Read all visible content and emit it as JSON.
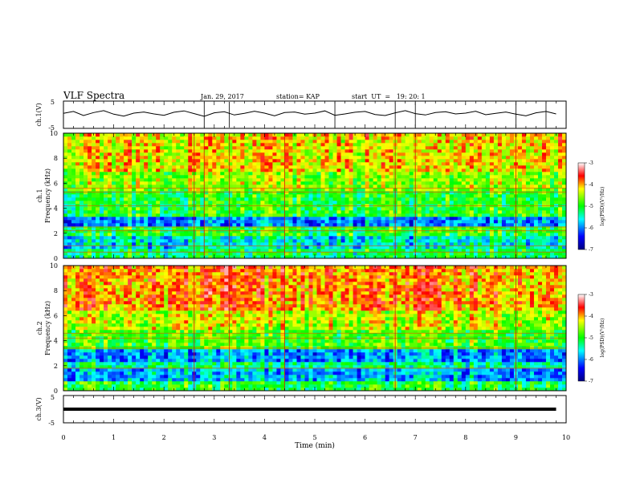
{
  "header": {
    "title": "VLF Spectra",
    "date": "Jan. 29, 2017",
    "station": "station= KAP",
    "start": "start  UT  =   19: 20: 1"
  },
  "chart_data": [
    {
      "type": "line",
      "ylabel": "ch.1(V)",
      "ylim": [
        -5,
        5
      ],
      "yticks": [
        "5",
        "-5"
      ],
      "xlim": [
        0,
        10
      ],
      "x": [
        0,
        0.2,
        0.4,
        0.6,
        0.8,
        1.0,
        1.2,
        1.4,
        1.6,
        1.8,
        2.0,
        2.2,
        2.4,
        2.6,
        2.8,
        3.0,
        3.2,
        3.4,
        3.6,
        3.8,
        4.0,
        4.2,
        4.4,
        4.6,
        4.8,
        5.0,
        5.2,
        5.4,
        5.6,
        5.8,
        6.0,
        6.2,
        6.4,
        6.6,
        6.8,
        7.0,
        7.2,
        7.4,
        7.6,
        7.8,
        8.0,
        8.2,
        8.4,
        8.6,
        8.8,
        9.0,
        9.2,
        9.4,
        9.6,
        9.8
      ],
      "y": [
        0.5,
        1.2,
        -0.3,
        0.8,
        1.5,
        0.2,
        -0.5,
        0.6,
        1.0,
        0.3,
        -0.2,
        0.9,
        1.4,
        0.4,
        -0.6,
        0.7,
        1.1,
        -0.1,
        0.5,
        1.3,
        0.6,
        -0.4,
        0.8,
        1.0,
        0.2,
        0.6,
        1.4,
        -0.2,
        0.3,
        0.9,
        1.2,
        0.1,
        -0.3,
        0.7,
        1.5,
        0.4,
        -0.1,
        0.8,
        1.1,
        0.3,
        0.6,
        1.3,
        0.0,
        0.5,
        1.0,
        0.2,
        -0.4,
        0.7,
        1.2,
        0.3
      ],
      "bursts": [
        2.8,
        3.3,
        5.4,
        6.6,
        7.0,
        9.0,
        9.6
      ]
    },
    {
      "type": "heatmap",
      "ylabel": "ch.1\nFrequency (kHz)",
      "ylim": [
        0,
        10
      ],
      "yticks": [
        "0",
        "2",
        "4",
        "6",
        "8",
        "10"
      ],
      "xlim": [
        0,
        10
      ],
      "colorbar": {
        "label": "log(PSD)(V²/Hz)",
        "range": [
          -7,
          -3
        ],
        "ticks": [
          "-3",
          "-4",
          "-5",
          "-6",
          "-7"
        ]
      },
      "bands_khz": [
        {
          "from": 0.0,
          "to": 0.7,
          "level": -5.2
        },
        {
          "from": 0.7,
          "to": 1.8,
          "level": -5.6
        },
        {
          "from": 1.8,
          "to": 2.5,
          "level": -5.0
        },
        {
          "from": 2.5,
          "to": 3.4,
          "level": -6.0
        },
        {
          "from": 3.4,
          "to": 5.3,
          "level": -5.0
        },
        {
          "from": 5.3,
          "to": 7.0,
          "level": -4.6
        },
        {
          "from": 7.0,
          "to": 10.0,
          "level": -4.2
        }
      ],
      "lines_khz": [
        0.5,
        1.0,
        2.2,
        2.5,
        4.2,
        5.3,
        5.6
      ],
      "sferics_min": [
        2.6,
        2.8,
        3.3,
        4.4,
        6.6,
        7.0,
        9.0
      ]
    },
    {
      "type": "heatmap",
      "ylabel": "ch.2\nFrequency (kHz)",
      "ylim": [
        0,
        10
      ],
      "yticks": [
        "0",
        "2",
        "4",
        "6",
        "8",
        "10"
      ],
      "xlim": [
        0,
        10
      ],
      "colorbar": {
        "label": "log(PSD)(V²/Hz)",
        "range": [
          -7,
          -3
        ],
        "ticks": [
          "-3",
          "-4",
          "-5",
          "-6",
          "-7"
        ]
      },
      "bands_khz": [
        {
          "from": 0.0,
          "to": 0.7,
          "level": -5.0
        },
        {
          "from": 0.7,
          "to": 1.8,
          "level": -5.8
        },
        {
          "from": 1.8,
          "to": 2.2,
          "level": -5.3
        },
        {
          "from": 2.2,
          "to": 3.3,
          "level": -5.9
        },
        {
          "from": 3.3,
          "to": 4.8,
          "level": -4.8
        },
        {
          "from": 4.8,
          "to": 6.5,
          "level": -4.4
        },
        {
          "from": 6.5,
          "to": 10.0,
          "level": -3.9
        }
      ],
      "lines_khz": [
        1.8,
        3.4,
        4.2,
        4.6
      ],
      "sferics_min": [
        2.6,
        3.3,
        4.4,
        6.6,
        9.0
      ]
    },
    {
      "type": "line",
      "ylabel": "ch.3(V)",
      "ylim": [
        -5,
        5
      ],
      "yticks": [
        "5",
        "-5"
      ],
      "xlim": [
        0,
        10
      ],
      "x": [
        0,
        9.8
      ],
      "y": [
        0,
        0
      ],
      "xlabel": "Time (min)",
      "xticks": [
        "0",
        "1",
        "2",
        "3",
        "4",
        "5",
        "6",
        "7",
        "8",
        "9",
        "10"
      ]
    }
  ]
}
